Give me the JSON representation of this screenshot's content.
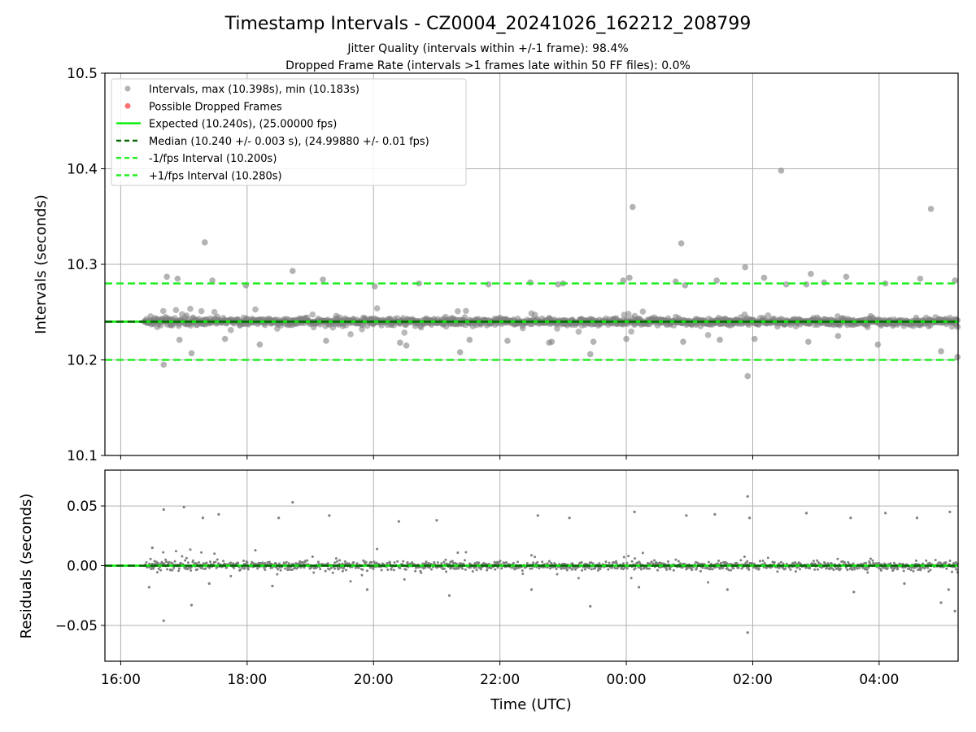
{
  "title": "Timestamp Intervals - CZ0004_20241026_162212_208799",
  "subtitle_1": "Jitter Quality (intervals within +/-1 frame): 98.4%",
  "subtitle_2": "Dropped Frame Rate (intervals >1 frames late within 50 FF files): 0.0%",
  "colors": {
    "points": "#808080",
    "dropped": "#ff0000",
    "expected": "#00ee00",
    "median": "#006400",
    "band": "#22ee22",
    "grid": "#b0b0b0"
  },
  "chart_data": [
    {
      "type": "scatter",
      "xlabel": "",
      "ylabel": "Intervals (seconds)",
      "x_unit": "hours (UTC, 16:00 = 16, 00:00 next day = 24)",
      "xlim": [
        15.75,
        29.25
      ],
      "ylim": [
        10.1,
        10.5
      ],
      "x_ticks": [
        16,
        18,
        20,
        22,
        24,
        26,
        28
      ],
      "y_ticks": [
        10.1,
        10.2,
        10.3,
        10.4,
        10.5
      ],
      "y_tick_labels": [
        "10.1",
        "10.2",
        "10.3",
        "10.4",
        "10.5"
      ],
      "grid": true,
      "legend_position": "top-left",
      "legend": [
        "Intervals, max (10.398s), min (10.183s)",
        "Possible Dropped Frames",
        "Expected (10.240s), (25.00000 fps)",
        "Median (10.240 +/- 0.003 s), (24.99880 +/- 0.01 fps)",
        "-1/fps Interval (10.200s)",
        "+1/fps Interval (10.280s)"
      ],
      "expected": 10.24,
      "median": 10.24,
      "lower_interval": 10.2,
      "upper_interval": 10.28,
      "data_range": [
        16.37,
        29.25
      ],
      "core_mean": 10.24,
      "points": [
        [
          17.33,
          10.323
        ],
        [
          26.45,
          10.398
        ],
        [
          24.1,
          10.36
        ],
        [
          24.87,
          10.322
        ],
        [
          28.82,
          10.358
        ],
        [
          16.68,
          10.195
        ],
        [
          25.92,
          10.183
        ],
        [
          17.12,
          10.207
        ],
        [
          23.43,
          10.206
        ],
        [
          21.37,
          10.208
        ],
        [
          24.05,
          10.286
        ],
        [
          26.92,
          10.29
        ],
        [
          18.72,
          10.293
        ],
        [
          26.53,
          10.279
        ],
        [
          27.48,
          10.287
        ],
        [
          16.73,
          10.287
        ],
        [
          16.9,
          10.285
        ],
        [
          17.45,
          10.283
        ],
        [
          19.2,
          10.284
        ],
        [
          20.72,
          10.28
        ],
        [
          22.48,
          10.281
        ],
        [
          23.0,
          10.28
        ],
        [
          25.88,
          10.297
        ],
        [
          26.18,
          10.286
        ],
        [
          26.85,
          10.279
        ],
        [
          28.65,
          10.285
        ],
        [
          29.2,
          10.283
        ],
        [
          17.98,
          10.278
        ],
        [
          20.02,
          10.277
        ],
        [
          21.82,
          10.279
        ],
        [
          23.95,
          10.283
        ],
        [
          24.78,
          10.282
        ],
        [
          27.13,
          10.281
        ],
        [
          28.1,
          10.28
        ],
        [
          22.92,
          10.279
        ],
        [
          24.93,
          10.278
        ],
        [
          25.43,
          10.283
        ],
        [
          16.93,
          10.221
        ],
        [
          17.65,
          10.222
        ],
        [
          18.2,
          10.216
        ],
        [
          19.25,
          10.22
        ],
        [
          20.42,
          10.218
        ],
        [
          21.52,
          10.221
        ],
        [
          22.12,
          10.22
        ],
        [
          22.82,
          10.219
        ],
        [
          23.48,
          10.219
        ],
        [
          24.0,
          10.222
        ],
        [
          24.9,
          10.219
        ],
        [
          25.48,
          10.221
        ],
        [
          26.88,
          10.219
        ],
        [
          27.98,
          10.216
        ],
        [
          28.98,
          10.209
        ],
        [
          29.24,
          10.203
        ],
        [
          20.52,
          10.215
        ],
        [
          22.78,
          10.218
        ],
        [
          26.03,
          10.222
        ],
        [
          27.35,
          10.225
        ]
      ]
    },
    {
      "type": "scatter",
      "xlabel": "Time (UTC)",
      "ylabel": "Residuals (seconds)",
      "xlim": [
        15.75,
        29.25
      ],
      "ylim": [
        -0.08,
        0.08
      ],
      "x_ticks": [
        16,
        18,
        20,
        22,
        24,
        26,
        28
      ],
      "x_tick_labels": [
        "16:00",
        "18:00",
        "20:00",
        "22:00",
        "00:00",
        "02:00",
        "04:00"
      ],
      "y_ticks": [
        -0.05,
        0.0,
        0.05
      ],
      "y_tick_labels": [
        "−0.05",
        "0.00",
        "0.05"
      ],
      "grid": true,
      "zero_line": 0.0,
      "data_range": [
        16.37,
        29.25
      ],
      "core_mean": 0.0,
      "points": [
        [
          16.5,
          0.015
        ],
        [
          16.68,
          0.047
        ],
        [
          16.68,
          -0.046
        ],
        [
          17.12,
          -0.033
        ],
        [
          18.72,
          0.053
        ],
        [
          25.92,
          0.058
        ],
        [
          25.92,
          -0.056
        ],
        [
          23.43,
          -0.034
        ],
        [
          28.98,
          -0.031
        ],
        [
          29.2,
          -0.038
        ],
        [
          17.0,
          0.049
        ],
        [
          17.3,
          0.04
        ],
        [
          17.55,
          0.043
        ],
        [
          18.5,
          0.04
        ],
        [
          19.3,
          0.042
        ],
        [
          20.4,
          0.037
        ],
        [
          21.0,
          0.038
        ],
        [
          22.6,
          0.042
        ],
        [
          23.1,
          0.04
        ],
        [
          24.13,
          0.045
        ],
        [
          24.95,
          0.042
        ],
        [
          25.4,
          0.043
        ],
        [
          25.95,
          0.04
        ],
        [
          26.85,
          0.044
        ],
        [
          27.55,
          0.04
        ],
        [
          28.1,
          0.044
        ],
        [
          28.6,
          0.04
        ],
        [
          29.12,
          0.045
        ],
        [
          16.45,
          -0.018
        ],
        [
          17.4,
          -0.015
        ],
        [
          18.4,
          -0.017
        ],
        [
          19.9,
          -0.02
        ],
        [
          21.2,
          -0.025
        ],
        [
          22.5,
          -0.02
        ],
        [
          24.2,
          -0.018
        ],
        [
          25.6,
          -0.02
        ],
        [
          27.6,
          -0.022
        ],
        [
          28.4,
          -0.015
        ],
        [
          29.1,
          -0.02
        ]
      ]
    }
  ]
}
